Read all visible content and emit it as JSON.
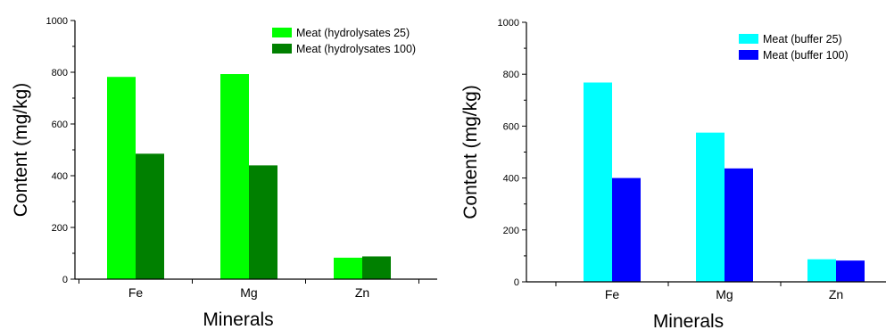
{
  "chart_data": [
    {
      "type": "bar",
      "title": "",
      "xlabel": "Minerals",
      "ylabel": "Content (mg/kg)",
      "categories": [
        "Fe",
        "Mg",
        "Zn"
      ],
      "ylim": [
        0,
        1000
      ],
      "yticks": [
        0,
        200,
        400,
        600,
        800,
        1000
      ],
      "legend_position": "top-right",
      "grid": false,
      "series": [
        {
          "name": "Meat (hydrolysates 25)",
          "color": "#00ff00",
          "values": [
            782,
            793,
            83
          ]
        },
        {
          "name": "Meat (hydrolysates 100)",
          "color": "#008000",
          "values": [
            485,
            440,
            88
          ]
        }
      ]
    },
    {
      "type": "bar",
      "title": "",
      "xlabel": "Minerals",
      "ylabel": "Content (mg/kg)",
      "categories": [
        "Fe",
        "Mg",
        "Zn"
      ],
      "ylim": [
        0,
        1000
      ],
      "yticks": [
        0,
        200,
        400,
        600,
        800,
        1000
      ],
      "legend_position": "top-right",
      "grid": false,
      "series": [
        {
          "name": "Meat (buffer 25)",
          "color": "#00ffff",
          "values": [
            768,
            575,
            87
          ]
        },
        {
          "name": "Meat (buffer 100)",
          "color": "#0000ff",
          "values": [
            400,
            437,
            82
          ]
        }
      ]
    }
  ]
}
